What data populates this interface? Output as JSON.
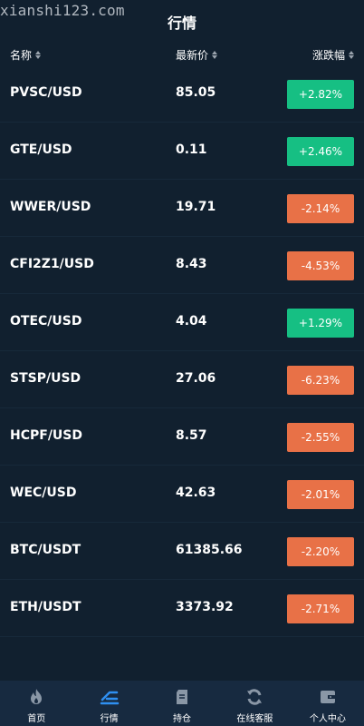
{
  "watermark": "xianshi123.com",
  "title": "行情",
  "header": {
    "name": "名称",
    "price": "最新价",
    "change": "涨跌幅"
  },
  "rows": [
    {
      "symbol": "PVSC/USD",
      "price": "85.05",
      "change": "+2.82%",
      "direction": "up"
    },
    {
      "symbol": "GTE/USD",
      "price": "0.11",
      "change": "+2.46%",
      "direction": "up"
    },
    {
      "symbol": "WWER/USD",
      "price": "19.71",
      "change": "-2.14%",
      "direction": "down"
    },
    {
      "symbol": "CFI2Z1/USD",
      "price": "8.43",
      "change": "-4.53%",
      "direction": "down"
    },
    {
      "symbol": "OTEC/USD",
      "price": "4.04",
      "change": "+1.29%",
      "direction": "up"
    },
    {
      "symbol": "STSP/USD",
      "price": "27.06",
      "change": "-6.23%",
      "direction": "down"
    },
    {
      "symbol": "HCPF/USD",
      "price": "8.57",
      "change": "-2.55%",
      "direction": "down"
    },
    {
      "symbol": "WEC/USD",
      "price": "42.63",
      "change": "-2.01%",
      "direction": "down"
    },
    {
      "symbol": "BTC/USDT",
      "price": "61385.66",
      "change": "-2.20%",
      "direction": "down"
    },
    {
      "symbol": "ETH/USDT",
      "price": "3373.92",
      "change": "-2.71%",
      "direction": "down"
    }
  ],
  "tabs": [
    {
      "label": "首页",
      "icon": "flame-icon",
      "active": false
    },
    {
      "label": "行情",
      "icon": "market-icon",
      "active": true
    },
    {
      "label": "持仓",
      "icon": "document-icon",
      "active": false
    },
    {
      "label": "在线客服",
      "icon": "refresh-icon",
      "active": false
    },
    {
      "label": "个人中心",
      "icon": "wallet-icon",
      "active": false
    }
  ],
  "colors": {
    "background": "#11202f",
    "up": "#16bf83",
    "down": "#e87147",
    "tab_active": "#2f8ff0",
    "tab_icon": "#8a97a6"
  }
}
